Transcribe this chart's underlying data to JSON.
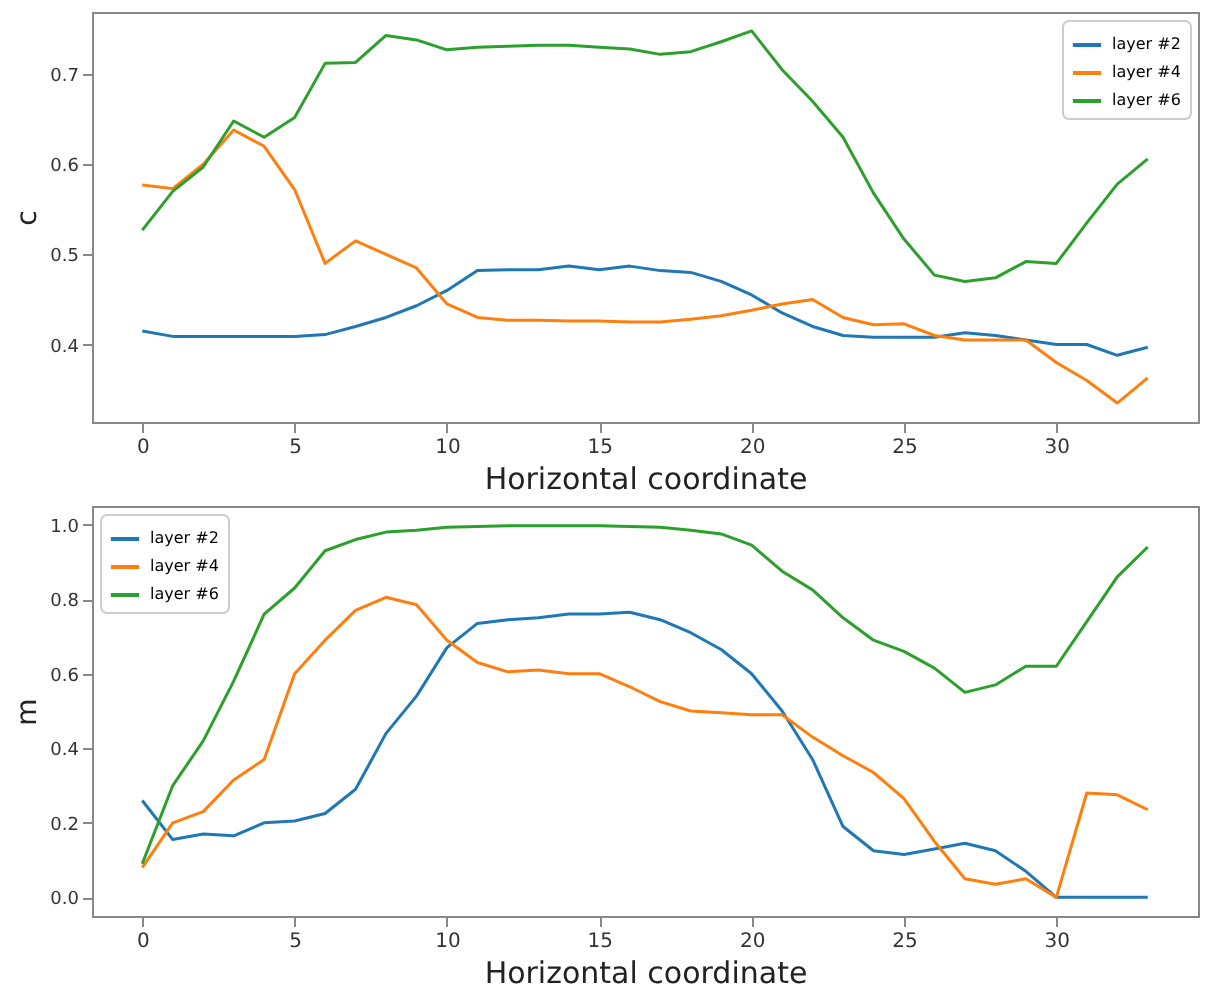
{
  "chart_data": [
    {
      "type": "line",
      "xlabel": "Horizontal coordinate",
      "ylabel": "c",
      "x": [
        0,
        1,
        2,
        3,
        4,
        5,
        6,
        7,
        8,
        9,
        10,
        11,
        12,
        13,
        14,
        15,
        16,
        17,
        18,
        19,
        20,
        21,
        22,
        23,
        24,
        25,
        26,
        27,
        28,
        29,
        30,
        31,
        32,
        33
      ],
      "xlim": [
        -1.65,
        34.65
      ],
      "xticks": [
        0,
        5,
        10,
        15,
        20,
        25,
        30
      ],
      "ylim": [
        0.314,
        0.769
      ],
      "yticks": [
        0.4,
        0.5,
        0.6,
        0.7
      ],
      "grid": false,
      "legend": "top right",
      "series": [
        {
          "name": "layer #2",
          "color": "#1f77b4",
          "values": [
            0.415,
            0.409,
            0.409,
            0.409,
            0.409,
            0.409,
            0.411,
            0.42,
            0.43,
            0.443,
            0.46,
            0.482,
            0.483,
            0.483,
            0.487,
            0.483,
            0.487,
            0.482,
            0.48,
            0.47,
            0.455,
            0.435,
            0.42,
            0.41,
            0.408,
            0.408,
            0.408,
            0.413,
            0.41,
            0.405,
            0.4,
            0.4,
            0.388,
            0.397
          ]
        },
        {
          "name": "layer #4",
          "color": "#ff7f0e",
          "values": [
            0.577,
            0.573,
            0.6,
            0.638,
            0.62,
            0.572,
            0.49,
            0.515,
            0.5,
            0.485,
            0.445,
            0.43,
            0.427,
            0.427,
            0.426,
            0.426,
            0.425,
            0.425,
            0.428,
            0.432,
            0.438,
            0.445,
            0.45,
            0.43,
            0.422,
            0.423,
            0.41,
            0.405,
            0.405,
            0.405,
            0.38,
            0.36,
            0.335,
            0.363
          ]
        },
        {
          "name": "layer #6",
          "color": "#2ca02c",
          "values": [
            0.527,
            0.57,
            0.597,
            0.648,
            0.63,
            0.652,
            0.712,
            0.713,
            0.743,
            0.738,
            0.727,
            0.73,
            0.731,
            0.732,
            0.732,
            0.73,
            0.728,
            0.722,
            0.725,
            0.736,
            0.748,
            0.705,
            0.67,
            0.63,
            0.568,
            0.517,
            0.477,
            0.47,
            0.474,
            0.492,
            0.49,
            0.535,
            0.578,
            0.606
          ]
        }
      ]
    },
    {
      "type": "line",
      "xlabel": "Horizontal coordinate",
      "ylabel": "m",
      "x": [
        0,
        1,
        2,
        3,
        4,
        5,
        6,
        7,
        8,
        9,
        10,
        11,
        12,
        13,
        14,
        15,
        16,
        17,
        18,
        19,
        20,
        21,
        22,
        23,
        24,
        25,
        26,
        27,
        28,
        29,
        30,
        31,
        32,
        33
      ],
      "xlim": [
        -1.65,
        34.65
      ],
      "xticks": [
        0,
        5,
        10,
        15,
        20,
        25,
        30
      ],
      "ylim": [
        -0.05,
        1.05
      ],
      "yticks": [
        {
          "value": 0,
          "label": "0.0"
        },
        0.2,
        0.4,
        0.6,
        0.8,
        {
          "value": 1,
          "label": "1.0"
        }
      ],
      "grid": false,
      "legend": "top left",
      "series": [
        {
          "name": "layer #2",
          "color": "#1f77b4",
          "values": [
            0.26,
            0.155,
            0.17,
            0.165,
            0.2,
            0.205,
            0.225,
            0.29,
            0.44,
            0.54,
            0.67,
            0.735,
            0.745,
            0.75,
            0.76,
            0.76,
            0.765,
            0.745,
            0.71,
            0.665,
            0.6,
            0.5,
            0.37,
            0.19,
            0.125,
            0.115,
            0.13,
            0.145,
            0.125,
            0.07,
            0.0,
            0.0,
            0.0,
            0.0
          ]
        },
        {
          "name": "layer #4",
          "color": "#ff7f0e",
          "values": [
            0.08,
            0.2,
            0.23,
            0.315,
            0.37,
            0.6,
            0.69,
            0.77,
            0.805,
            0.785,
            0.69,
            0.63,
            0.605,
            0.61,
            0.6,
            0.6,
            0.565,
            0.525,
            0.5,
            0.495,
            0.49,
            0.49,
            0.43,
            0.38,
            0.335,
            0.265,
            0.15,
            0.05,
            0.035,
            0.05,
            0.0,
            0.28,
            0.275,
            0.235
          ]
        },
        {
          "name": "layer #6",
          "color": "#2ca02c",
          "values": [
            0.09,
            0.3,
            0.42,
            0.58,
            0.76,
            0.83,
            0.93,
            0.96,
            0.98,
            0.985,
            0.993,
            0.995,
            0.997,
            0.997,
            0.997,
            0.997,
            0.995,
            0.993,
            0.985,
            0.975,
            0.945,
            0.875,
            0.825,
            0.75,
            0.69,
            0.66,
            0.615,
            0.55,
            0.57,
            0.62,
            0.62,
            0.74,
            0.86,
            0.94
          ]
        }
      ]
    }
  ]
}
